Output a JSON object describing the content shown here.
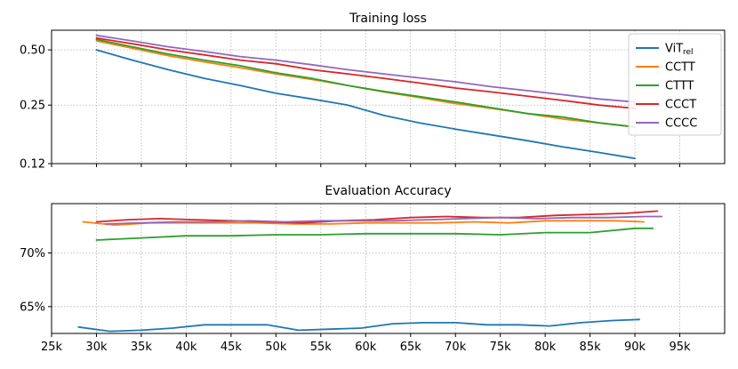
{
  "chart_data": [
    {
      "type": "line",
      "title": "Training loss",
      "yscale": "log",
      "ylim": [
        0.12,
        0.64
      ],
      "xlim": [
        25000,
        100000
      ],
      "yticks": [
        0.12,
        0.25,
        0.5
      ],
      "ytick_labels": [
        "0.12",
        "0.25",
        "0.50"
      ],
      "grid": true,
      "legend": "top-right",
      "series": [
        {
          "name": "ViT",
          "name_sub": "rel",
          "color": "#1f77b4",
          "x": [
            30000,
            34000,
            38000,
            42000,
            46000,
            50000,
            54000,
            58000,
            62000,
            66000,
            70000,
            74000,
            78000,
            82000,
            86000,
            90000
          ],
          "y": [
            0.5,
            0.44,
            0.39,
            0.35,
            0.32,
            0.29,
            0.27,
            0.25,
            0.22,
            0.2,
            0.185,
            0.172,
            0.16,
            0.148,
            0.138,
            0.128
          ]
        },
        {
          "name": "CCTT",
          "color": "#ff7f0e",
          "x": [
            30000,
            34000,
            38000,
            42000,
            46000,
            50000,
            54000,
            58000,
            62000,
            66000,
            70000,
            74000,
            78000,
            82000,
            86000,
            90000
          ],
          "y": [
            0.56,
            0.51,
            0.465,
            0.43,
            0.4,
            0.37,
            0.345,
            0.32,
            0.295,
            0.275,
            0.255,
            0.24,
            0.225,
            0.21,
            0.2,
            0.19
          ]
        },
        {
          "name": "CTTT",
          "color": "#2ca02c",
          "x": [
            30000,
            34000,
            38000,
            42000,
            46000,
            50000,
            54000,
            58000,
            62000,
            66000,
            70000,
            74000,
            78000,
            82000,
            86000,
            90000
          ],
          "y": [
            0.57,
            0.52,
            0.475,
            0.44,
            0.41,
            0.375,
            0.35,
            0.32,
            0.297,
            0.278,
            0.26,
            0.242,
            0.225,
            0.215,
            0.2,
            0.19
          ]
        },
        {
          "name": "CCCT",
          "color": "#d62728",
          "x": [
            30000,
            34000,
            38000,
            42000,
            46000,
            50000,
            54000,
            58000,
            62000,
            66000,
            70000,
            74000,
            78000,
            82000,
            86000,
            90000
          ],
          "y": [
            0.58,
            0.54,
            0.5,
            0.47,
            0.44,
            0.42,
            0.39,
            0.37,
            0.35,
            0.33,
            0.31,
            0.295,
            0.28,
            0.265,
            0.25,
            0.24
          ]
        },
        {
          "name": "CCCC",
          "color": "#9467bd",
          "x": [
            30000,
            34000,
            38000,
            42000,
            46000,
            50000,
            54000,
            58000,
            62000,
            66000,
            70000,
            74000,
            78000,
            82000,
            86000,
            90000
          ],
          "y": [
            0.6,
            0.56,
            0.52,
            0.49,
            0.46,
            0.44,
            0.415,
            0.39,
            0.37,
            0.352,
            0.335,
            0.315,
            0.3,
            0.285,
            0.27,
            0.26
          ]
        }
      ]
    },
    {
      "type": "line",
      "title": "Evaluation Accuracy",
      "ylim": [
        62.5,
        74.6
      ],
      "xlim": [
        25000,
        100000
      ],
      "yticks": [
        65,
        70
      ],
      "ytick_labels": [
        "65%",
        "70%"
      ],
      "xticks": [
        25000,
        30000,
        35000,
        40000,
        45000,
        50000,
        55000,
        60000,
        65000,
        70000,
        75000,
        80000,
        85000,
        90000,
        95000
      ],
      "xtick_labels": [
        "25k",
        "30k",
        "35k",
        "40k",
        "45k",
        "50k",
        "55k",
        "60k",
        "65k",
        "70k",
        "75k",
        "80k",
        "85k",
        "90k",
        "95k"
      ],
      "grid": true,
      "series": [
        {
          "color": "#1f77b4",
          "x": [
            28000,
            31500,
            35000,
            38500,
            42000,
            45500,
            49000,
            52500,
            56000,
            59500,
            63000,
            66500,
            70000,
            73500,
            77000,
            80500,
            84000,
            87500,
            90500
          ],
          "y": [
            63.1,
            62.7,
            62.8,
            63.0,
            63.3,
            63.3,
            63.3,
            62.8,
            62.9,
            63.0,
            63.4,
            63.5,
            63.5,
            63.3,
            63.3,
            63.2,
            63.5,
            63.7,
            63.8
          ]
        },
        {
          "color": "#ff7f0e",
          "x": [
            28500,
            32000,
            36000,
            40000,
            44000,
            48000,
            52000,
            56000,
            60000,
            64000,
            68000,
            72000,
            76000,
            80000,
            84000,
            88000,
            91000
          ],
          "y": [
            72.9,
            72.6,
            72.8,
            72.8,
            72.8,
            72.8,
            72.7,
            72.7,
            72.8,
            72.8,
            72.8,
            72.9,
            72.8,
            73.0,
            73.0,
            73.0,
            72.9
          ]
        },
        {
          "color": "#2ca02c",
          "x": [
            30000,
            35000,
            40000,
            45000,
            50000,
            55000,
            60000,
            65000,
            70000,
            75000,
            80000,
            85000,
            90000,
            92000
          ],
          "y": [
            71.2,
            71.4,
            71.6,
            71.6,
            71.7,
            71.7,
            71.8,
            71.8,
            71.8,
            71.7,
            71.9,
            71.9,
            72.3,
            72.3
          ]
        },
        {
          "color": "#d62728",
          "x": [
            30000,
            33500,
            37000,
            41000,
            45000,
            49000,
            53000,
            57000,
            61000,
            65000,
            69000,
            73000,
            77000,
            81000,
            85000,
            89000,
            92500
          ],
          "y": [
            72.9,
            73.1,
            73.2,
            73.1,
            73.0,
            72.9,
            72.8,
            73.0,
            73.1,
            73.3,
            73.4,
            73.3,
            73.3,
            73.5,
            73.6,
            73.7,
            73.9
          ]
        },
        {
          "color": "#9467bd",
          "x": [
            31000,
            35000,
            39000,
            43000,
            47000,
            51000,
            55000,
            59000,
            63000,
            67000,
            71000,
            75000,
            79000,
            83000,
            87000,
            91000,
            93000
          ],
          "y": [
            72.7,
            72.8,
            72.9,
            72.9,
            73.0,
            72.9,
            73.0,
            73.0,
            73.0,
            73.1,
            73.2,
            73.3,
            73.2,
            73.3,
            73.3,
            73.4,
            73.4
          ]
        }
      ]
    }
  ]
}
